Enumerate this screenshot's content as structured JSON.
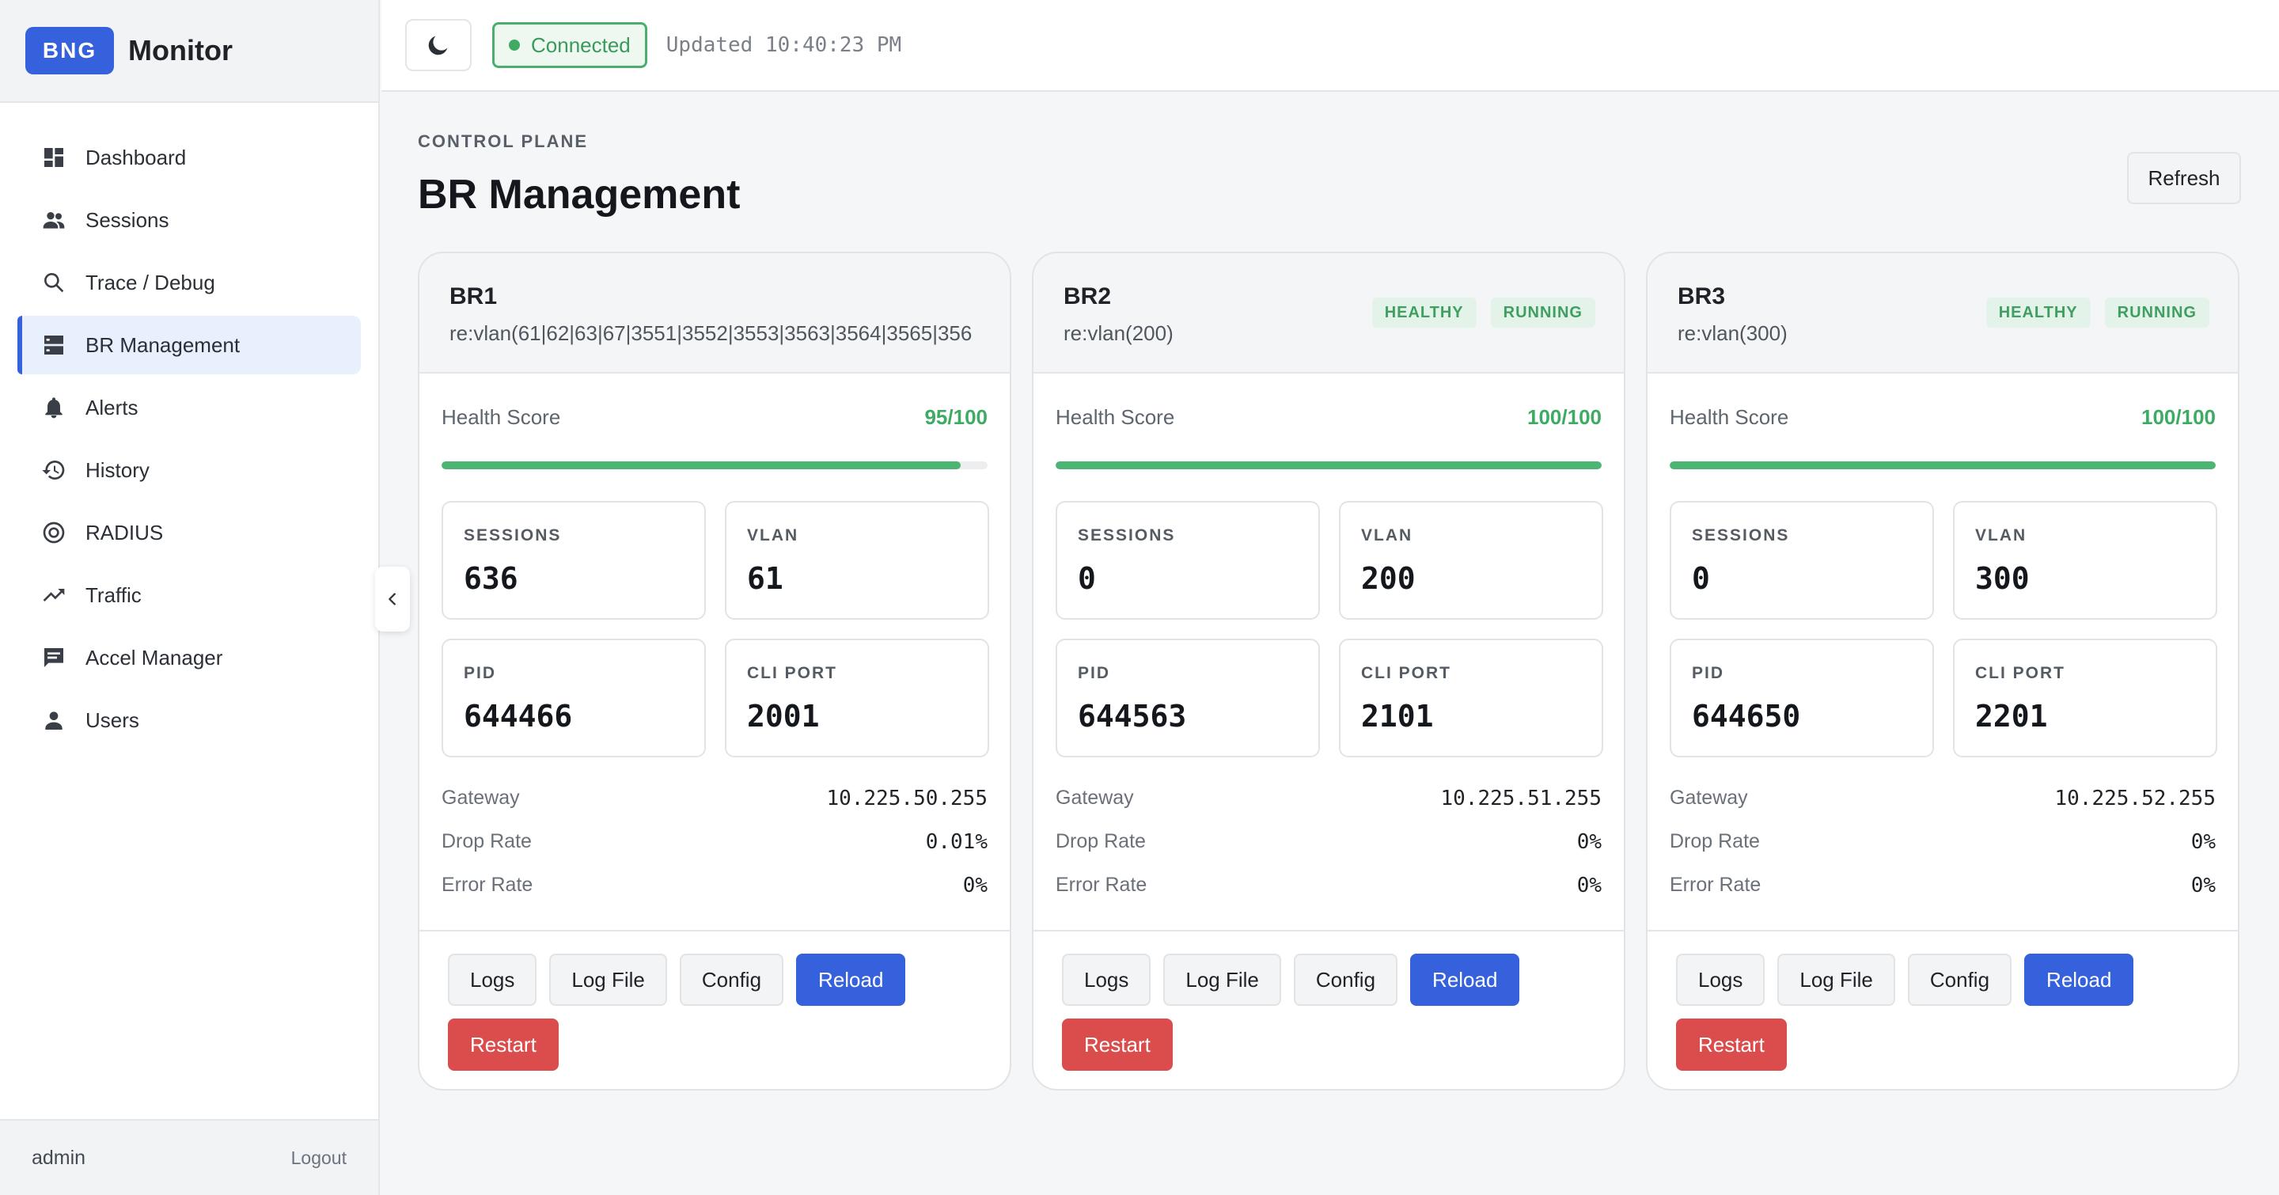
{
  "brand": {
    "badge": "BNG",
    "name": "Monitor"
  },
  "nav": [
    {
      "label": "Dashboard",
      "icon": "dashboard-icon",
      "active": false
    },
    {
      "label": "Sessions",
      "icon": "people-icon",
      "active": false
    },
    {
      "label": "Trace / Debug",
      "icon": "search-icon",
      "active": false
    },
    {
      "label": "BR Management",
      "icon": "server-icon",
      "active": true
    },
    {
      "label": "Alerts",
      "icon": "bell-icon",
      "active": false
    },
    {
      "label": "History",
      "icon": "history-icon",
      "active": false
    },
    {
      "label": "RADIUS",
      "icon": "target-icon",
      "active": false
    },
    {
      "label": "Traffic",
      "icon": "trending-up-icon",
      "active": false
    },
    {
      "label": "Accel Manager",
      "icon": "message-icon",
      "active": false
    },
    {
      "label": "Users",
      "icon": "person-icon",
      "active": false
    }
  ],
  "footer": {
    "user": "admin",
    "logout": "Logout"
  },
  "topbar": {
    "status": "Connected",
    "updated": "Updated 10:40:23 PM"
  },
  "page": {
    "eyebrow": "CONTROL PLANE",
    "title": "BR Management",
    "refresh": "Refresh"
  },
  "colors": {
    "accent": "#3561dc",
    "success": "#3eaa63",
    "danger": "#db4d4d"
  },
  "labels": {
    "health": "Health Score",
    "sessions": "SESSIONS",
    "vlan": "VLAN",
    "pid": "PID",
    "cli_port": "CLI PORT",
    "gateway": "Gateway",
    "drop_rate": "Drop Rate",
    "error_rate": "Error Rate",
    "logs": "Logs",
    "log_file": "Log File",
    "config": "Config",
    "reload": "Reload",
    "restart": "Restart"
  },
  "cards": [
    {
      "name": "BR1",
      "iface": "re:vlan(61|62|63|67|3551|3552|3553|3563|3564|3565|356",
      "badges": [],
      "health": "95/100",
      "health_pct": 95,
      "sessions": "636",
      "vlan": "61",
      "pid": "644466",
      "cli_port": "2001",
      "gateway": "10.225.50.255",
      "drop_rate": "0.01%",
      "error_rate": "0%"
    },
    {
      "name": "BR2",
      "iface": "re:vlan(200)",
      "badges": [
        "HEALTHY",
        "RUNNING"
      ],
      "health": "100/100",
      "health_pct": 100,
      "sessions": "0",
      "vlan": "200",
      "pid": "644563",
      "cli_port": "2101",
      "gateway": "10.225.51.255",
      "drop_rate": "0%",
      "error_rate": "0%"
    },
    {
      "name": "BR3",
      "iface": "re:vlan(300)",
      "badges": [
        "HEALTHY",
        "RUNNING"
      ],
      "health": "100/100",
      "health_pct": 100,
      "sessions": "0",
      "vlan": "300",
      "pid": "644650",
      "cli_port": "2201",
      "gateway": "10.225.52.255",
      "drop_rate": "0%",
      "error_rate": "0%"
    }
  ]
}
